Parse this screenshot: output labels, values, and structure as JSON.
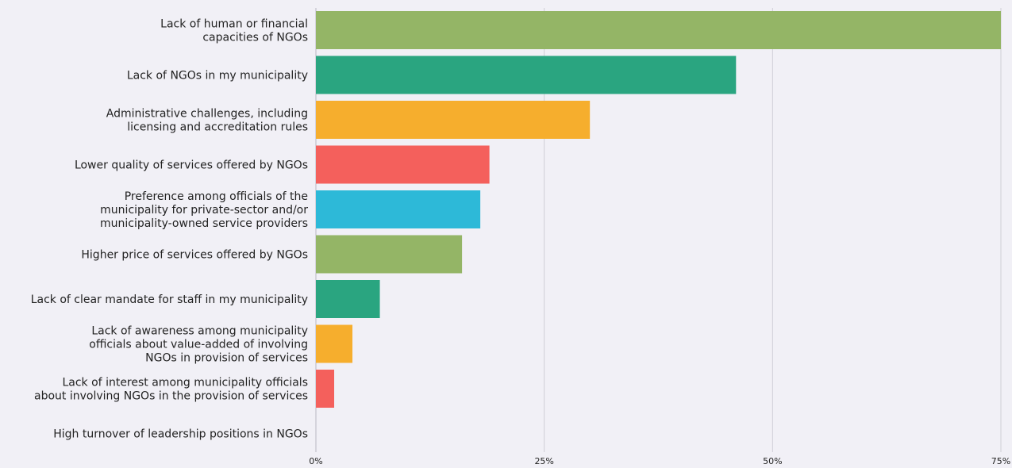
{
  "chart_data": {
    "type": "bar",
    "orientation": "horizontal",
    "title": "",
    "xlabel": "",
    "ylabel": "",
    "xlim": [
      0,
      75
    ],
    "grid": true,
    "categories": [
      "Lack of human or financial\ncapacities of NGOs",
      "Lack of NGOs in my municipality",
      "Administrative challenges, including\nlicensing and accreditation rules",
      "Lower quality of services offered by NGOs",
      "Preference among officials of the\nmunicipality for private-sector and/or\nmunicipality-owned service providers",
      "Higher price of services offered by NGOs",
      "Lack of clear mandate for staff in my municipality",
      "Lack of awareness among municipality\nofficials about  value-added of involving\nNGOs in  provision of services",
      "Lack of interest among municipality officials\nabout involving NGOs in the provision of services",
      "High turnover of leadership positions in NGOs"
    ],
    "values": [
      75,
      46,
      30,
      19,
      18,
      16,
      7,
      4,
      2,
      0
    ],
    "colors": [
      "#94b566",
      "#2aa580",
      "#f6ae2d",
      "#f4605c",
      "#2db9d8",
      "#94b566",
      "#2aa580",
      "#f6ae2d",
      "#f4605c",
      "#2db9d8"
    ],
    "x_ticks": [
      0,
      25,
      50,
      75
    ],
    "x_tick_labels": [
      "0%",
      "25%",
      "50%",
      "75%"
    ]
  }
}
